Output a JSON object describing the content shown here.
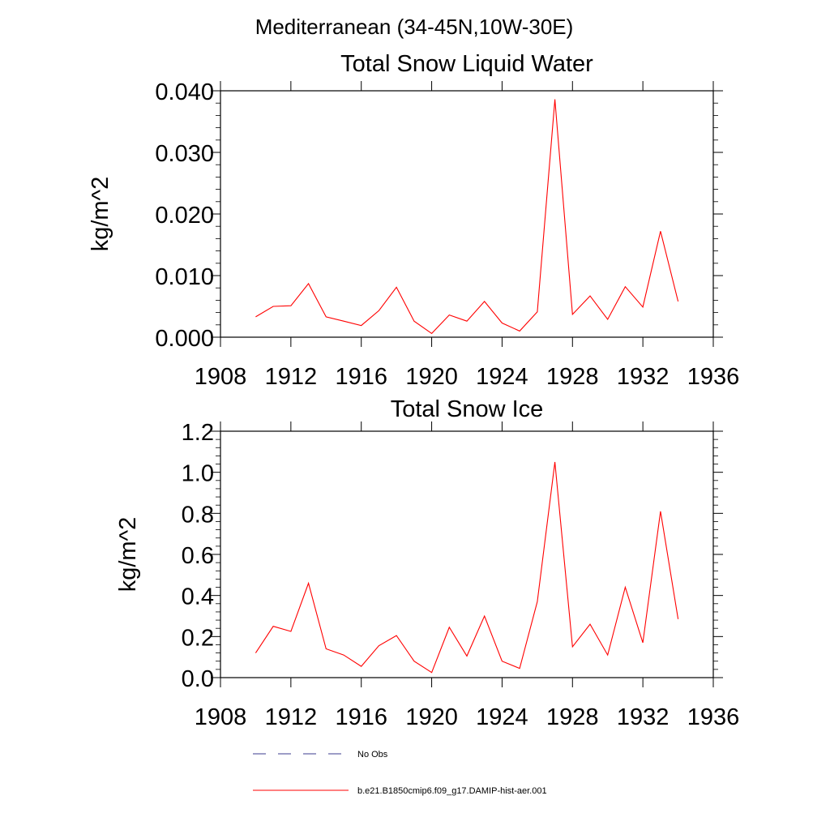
{
  "figure_title": "Mediterranean (34-45N,10W-30E)",
  "chart_data": [
    {
      "type": "line",
      "title": "Total Snow Liquid Water",
      "xlabel": "",
      "ylabel": "kg/m^2",
      "xlim": [
        1908,
        1936
      ],
      "ylim": [
        0,
        0.04
      ],
      "x_ticks": [
        "1908",
        "1912",
        "1916",
        "1920",
        "1924",
        "1928",
        "1932",
        "1936"
      ],
      "y_ticks": [
        "0.000",
        "0.010",
        "0.020",
        "0.030",
        "0.040"
      ],
      "grid": false,
      "series": [
        {
          "name": "b.e21.B1850cmip6.f09_g17.DAMIP-hist-aer.001",
          "color": "#ff0000",
          "x": [
            1910,
            1911,
            1912,
            1913,
            1914,
            1915,
            1916,
            1917,
            1918,
            1919,
            1920,
            1921,
            1922,
            1923,
            1924,
            1925,
            1926,
            1927,
            1928,
            1929,
            1930,
            1931,
            1932,
            1933,
            1934
          ],
          "y": [
            0.0033,
            0.005,
            0.0051,
            0.0087,
            0.0033,
            0.0026,
            0.0019,
            0.0043,
            0.0081,
            0.0026,
            0.0006,
            0.0036,
            0.0026,
            0.0058,
            0.0023,
            0.001,
            0.0041,
            0.0386,
            0.0037,
            0.0067,
            0.0029,
            0.0082,
            0.0049,
            0.0172,
            0.0058
          ]
        }
      ]
    },
    {
      "type": "line",
      "title": "Total Snow Ice",
      "xlabel": "",
      "ylabel": "kg/m^2",
      "xlim": [
        1908,
        1936
      ],
      "ylim": [
        0,
        1.2
      ],
      "x_ticks": [
        "1908",
        "1912",
        "1916",
        "1920",
        "1924",
        "1928",
        "1932",
        "1936"
      ],
      "y_ticks": [
        "0.0",
        "0.2",
        "0.4",
        "0.6",
        "0.8",
        "1.0",
        "1.2"
      ],
      "grid": false,
      "series": [
        {
          "name": "b.e21.B1850cmip6.f09_g17.DAMIP-hist-aer.001",
          "color": "#ff0000",
          "x": [
            1910,
            1911,
            1912,
            1913,
            1914,
            1915,
            1916,
            1917,
            1918,
            1919,
            1920,
            1921,
            1922,
            1923,
            1924,
            1925,
            1926,
            1927,
            1928,
            1929,
            1930,
            1931,
            1932,
            1933,
            1934
          ],
          "y": [
            0.12,
            0.25,
            0.225,
            0.46,
            0.14,
            0.11,
            0.055,
            0.155,
            0.205,
            0.08,
            0.025,
            0.245,
            0.105,
            0.3,
            0.08,
            0.045,
            0.37,
            1.05,
            0.15,
            0.26,
            0.11,
            0.44,
            0.17,
            0.81,
            0.285
          ]
        }
      ]
    }
  ],
  "legend": {
    "placement": "bottom",
    "items": [
      {
        "label": "No Obs",
        "style": "dashed",
        "color": "#3b3b8f"
      },
      {
        "label": "b.e21.B1850cmip6.f09_g17.DAMIP-hist-aer.001",
        "style": "solid",
        "color": "#ff0000"
      }
    ]
  }
}
